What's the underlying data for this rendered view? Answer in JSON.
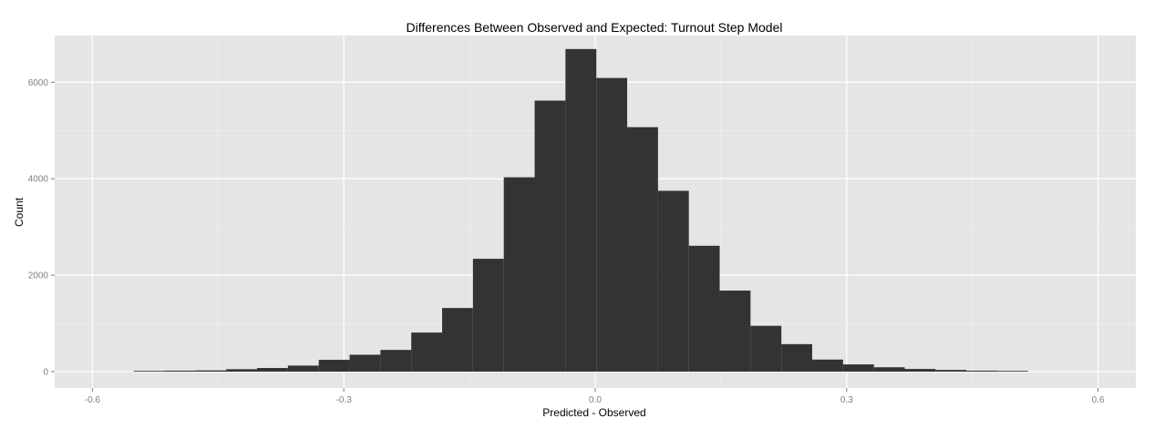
{
  "chart_data": {
    "type": "bar",
    "title": "Differences Between Observed and Expected: Turnout Step Model",
    "xlabel": "Predicted - Observed",
    "ylabel": "Count",
    "xlim": [
      -0.645,
      0.645
    ],
    "ylim": [
      -340,
      6970
    ],
    "x_ticks": [
      -0.6,
      -0.3,
      0.0,
      0.3,
      0.6
    ],
    "x_tick_labels": [
      "-0.6",
      "-0.3",
      "0.0",
      "0.3",
      "0.6"
    ],
    "y_ticks": [
      0,
      2000,
      4000,
      6000
    ],
    "y_tick_labels": [
      "0",
      "2000",
      "4000",
      "6000"
    ],
    "bin_width": 0.0368,
    "bins": [
      {
        "x0": -0.5507,
        "x1": -0.5139,
        "count": 15
      },
      {
        "x0": -0.5139,
        "x1": -0.4771,
        "count": 20
      },
      {
        "x0": -0.4771,
        "x1": -0.4403,
        "count": 25
      },
      {
        "x0": -0.4403,
        "x1": -0.4035,
        "count": 50
      },
      {
        "x0": -0.4035,
        "x1": -0.3667,
        "count": 75
      },
      {
        "x0": -0.3667,
        "x1": -0.3299,
        "count": 125
      },
      {
        "x0": -0.3299,
        "x1": -0.2931,
        "count": 245
      },
      {
        "x0": -0.2931,
        "x1": -0.2563,
        "count": 350
      },
      {
        "x0": -0.2563,
        "x1": -0.2195,
        "count": 450
      },
      {
        "x0": -0.2195,
        "x1": -0.1827,
        "count": 810
      },
      {
        "x0": -0.1827,
        "x1": -0.1459,
        "count": 1320
      },
      {
        "x0": -0.1459,
        "x1": -0.1091,
        "count": 2340
      },
      {
        "x0": -0.1091,
        "x1": -0.0723,
        "count": 4030
      },
      {
        "x0": -0.0723,
        "x1": -0.0355,
        "count": 5620
      },
      {
        "x0": -0.0355,
        "x1": 0.0013,
        "count": 6690
      },
      {
        "x0": 0.0013,
        "x1": 0.0381,
        "count": 6090
      },
      {
        "x0": 0.0381,
        "x1": 0.0749,
        "count": 5070
      },
      {
        "x0": 0.0749,
        "x1": 0.1117,
        "count": 3750
      },
      {
        "x0": 0.1117,
        "x1": 0.1485,
        "count": 2610
      },
      {
        "x0": 0.1485,
        "x1": 0.1853,
        "count": 1680
      },
      {
        "x0": 0.1853,
        "x1": 0.2221,
        "count": 950
      },
      {
        "x0": 0.2221,
        "x1": 0.2589,
        "count": 570
      },
      {
        "x0": 0.2589,
        "x1": 0.2957,
        "count": 250
      },
      {
        "x0": 0.2957,
        "x1": 0.3325,
        "count": 150
      },
      {
        "x0": 0.3325,
        "x1": 0.3693,
        "count": 90
      },
      {
        "x0": 0.3693,
        "x1": 0.4061,
        "count": 55
      },
      {
        "x0": 0.4061,
        "x1": 0.4429,
        "count": 35
      },
      {
        "x0": 0.4429,
        "x1": 0.4797,
        "count": 20
      },
      {
        "x0": 0.4797,
        "x1": 0.5165,
        "count": 15
      }
    ],
    "grid": true,
    "legend": "none",
    "colors": {
      "bar_fill": "#333333",
      "panel_background": "#e5e5e5",
      "grid_major": "#ffffff",
      "grid_minor": "#f2f2f2",
      "tick_label": "#7f7f7f"
    }
  }
}
